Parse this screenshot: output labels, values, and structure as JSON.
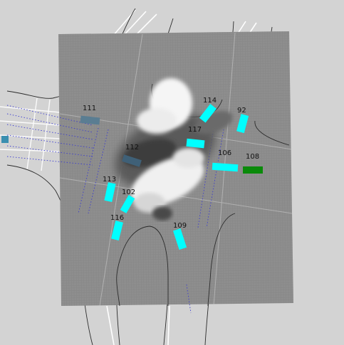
{
  "colors": {
    "background": "#d3d3d3",
    "grid_base": "#8e8e8e",
    "grid_line": "#7f7f7f",
    "lane_line": "#ffffff",
    "road_edge": "#2b2b2b",
    "crosswalk_dots": "#3b3bd0",
    "agent_active": "#00ffff",
    "agent_faded": "#5a7d92",
    "agent_ego": "#0a8a0a",
    "label_text": "#111111"
  },
  "agents": [
    {
      "id": "111",
      "label": "111",
      "state": "faded"
    },
    {
      "id": "114",
      "label": "114",
      "state": "active"
    },
    {
      "id": "92",
      "label": "92",
      "state": "active"
    },
    {
      "id": "117",
      "label": "117",
      "state": "active"
    },
    {
      "id": "112",
      "label": "112",
      "state": "faded"
    },
    {
      "id": "106",
      "label": "106",
      "state": "active"
    },
    {
      "id": "108",
      "label": "108",
      "state": "ego"
    },
    {
      "id": "113",
      "label": "113",
      "state": "active"
    },
    {
      "id": "102",
      "label": "102",
      "state": "active"
    },
    {
      "id": "116",
      "label": "116",
      "state": "active"
    },
    {
      "id": "109",
      "label": "109",
      "state": "active"
    }
  ]
}
